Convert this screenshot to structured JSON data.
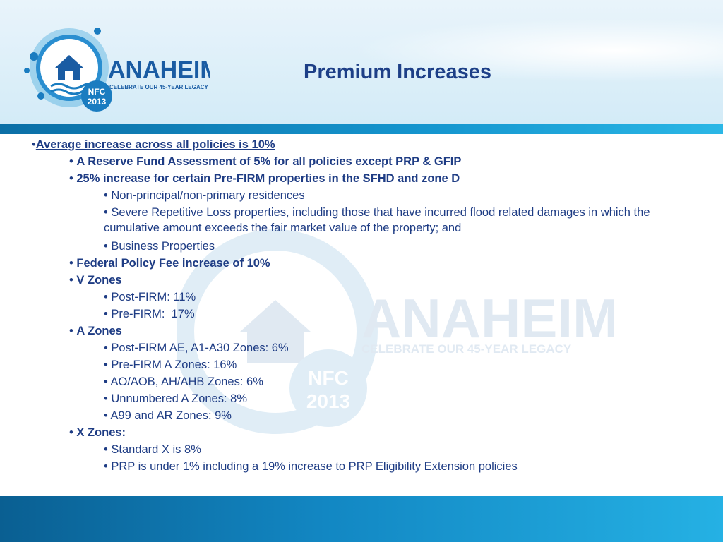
{
  "slide": {
    "title": "Premium Increases",
    "logo": {
      "name": "ANAHEIM",
      "tagline": "CELEBRATE OUR 45-YEAR LEGACY",
      "badge_line1": "NFC",
      "badge_line2": "2013"
    }
  },
  "bullets": [
    {
      "text": "Average increase across all policies is 10%",
      "level": 0,
      "style": "bold-underline"
    },
    {
      "text": "A Reserve Fund Assessment of 5% for all policies except PRP & GFIP",
      "level": 1,
      "style": "bold"
    },
    {
      "text": "25% increase for certain Pre-FIRM properties in the SFHD and zone D",
      "level": 1,
      "style": "bold"
    },
    {
      "text": "Non-principal/non-primary residences",
      "level": 2,
      "style": "normal"
    },
    {
      "text": "Severe Repetitive Loss properties, including those that have incurred flood related damages in which the cumulative amount exceeds the fair market value of the property; and",
      "level": 2,
      "style": "normal"
    },
    {
      "text": "Business Properties",
      "level": 2,
      "style": "normal"
    },
    {
      "text": "Federal Policy Fee increase of 10%",
      "level": 1,
      "style": "bold"
    },
    {
      "text": "V Zones",
      "level": 1,
      "style": "bold"
    },
    {
      "text": "Post-FIRM: 11%",
      "level": 2,
      "style": "normal"
    },
    {
      "text": "Pre-FIRM:  17%",
      "level": 2,
      "style": "normal"
    },
    {
      "text": "A Zones",
      "level": 1,
      "style": "bold"
    },
    {
      "text": "Post-FIRM AE, A1-A30 Zones: 6%",
      "level": 2,
      "style": "normal"
    },
    {
      "text": "Pre-FIRM A Zones: 16%",
      "level": 2,
      "style": "normal"
    },
    {
      "text": "AO/AOB, AH/AHB Zones: 6%",
      "level": 2,
      "style": "normal"
    },
    {
      "text": "Unnumbered A Zones: 8%",
      "level": 2,
      "style": "normal"
    },
    {
      "text": "A99 and AR Zones: 9%",
      "level": 2,
      "style": "normal"
    },
    {
      "text": "X Zones:",
      "level": 1,
      "style": "bold"
    },
    {
      "text": "Standard X is 8%",
      "level": 2,
      "style": "normal"
    },
    {
      "text": "PRP is under 1% including a 19% increase to PRP Eligibility Extension policies",
      "level": 2,
      "style": "normal"
    }
  ],
  "colors": {
    "text": "#1e3c84",
    "band": "#1596cf",
    "logo_blue": "#1a5ca3"
  }
}
